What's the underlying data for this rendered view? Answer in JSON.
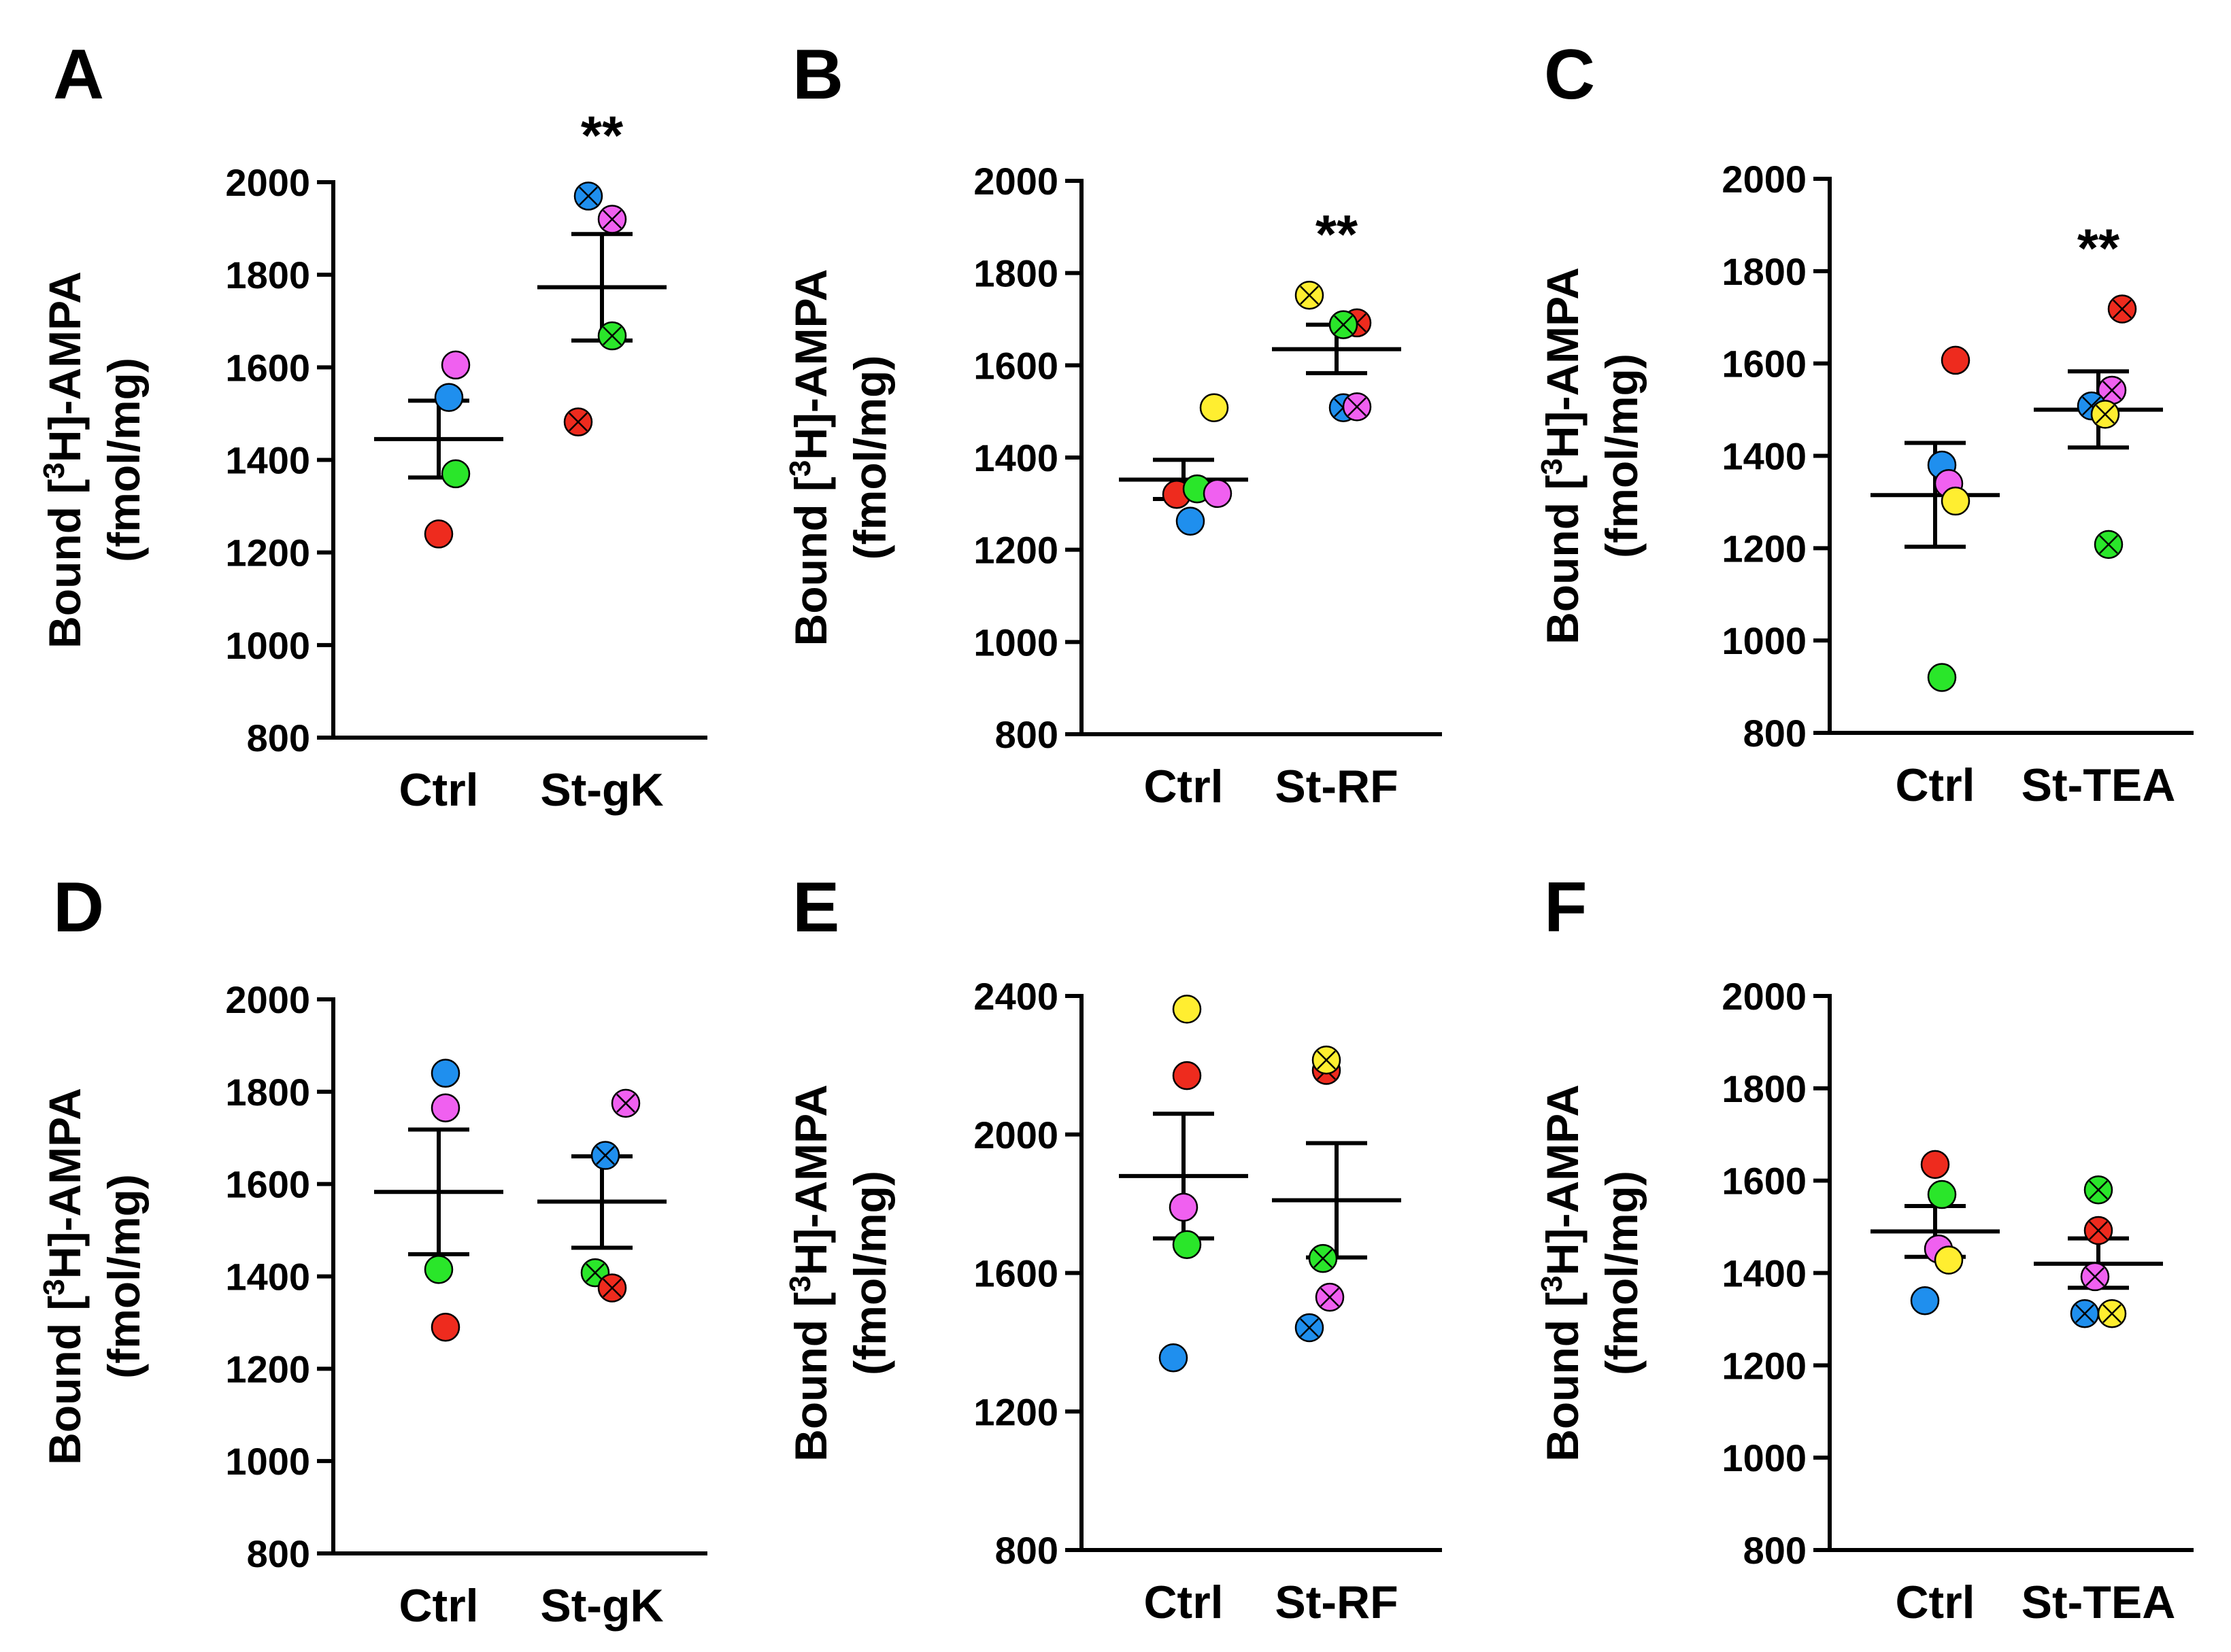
{
  "chart_data": [
    {
      "panel": "A",
      "type": "scatter",
      "ylabel_main": "Bound [",
      "ylabel_sup": "3",
      "ylabel_rest": "H]-AMPA",
      "ylabel_units": "(fmol/mg)",
      "ylim": [
        800,
        2000
      ],
      "yticks": [
        "800",
        "1000",
        "1200",
        "1400",
        "1600",
        "1800",
        "2000"
      ],
      "categories": [
        "Ctrl",
        "St-gK"
      ],
      "significance": [
        "",
        "**"
      ],
      "groups": [
        {
          "category": "Ctrl",
          "mean": 1445,
          "sem_low": 1362,
          "sem_high": 1528,
          "points": [
            {
              "color": "magenta",
              "value": 1605,
              "crossed": false
            },
            {
              "color": "blue",
              "value": 1535,
              "crossed": false
            },
            {
              "color": "green",
              "value": 1370,
              "crossed": false
            },
            {
              "color": "red",
              "value": 1240,
              "crossed": false
            }
          ]
        },
        {
          "category": "St-gK",
          "mean": 1773,
          "sem_low": 1658,
          "sem_high": 1888,
          "points": [
            {
              "color": "blue",
              "value": 1970,
              "crossed": true
            },
            {
              "color": "magenta",
              "value": 1920,
              "crossed": true
            },
            {
              "color": "green",
              "value": 1668,
              "crossed": true
            },
            {
              "color": "red",
              "value": 1482,
              "crossed": true
            }
          ]
        }
      ]
    },
    {
      "panel": "B",
      "type": "scatter",
      "ylabel_main": "Bound [",
      "ylabel_sup": "3",
      "ylabel_rest": "H]-AMPA",
      "ylabel_units": "(fmol/mg)",
      "ylim": [
        800,
        2000
      ],
      "yticks": [
        "800",
        "1000",
        "1200",
        "1400",
        "1600",
        "1800",
        "2000"
      ],
      "categories": [
        "Ctrl",
        "St-RF"
      ],
      "significance": [
        "",
        "**"
      ],
      "groups": [
        {
          "category": "Ctrl",
          "mean": 1352,
          "sem_low": 1310,
          "sem_high": 1395,
          "points": [
            {
              "color": "yellow",
              "value": 1508,
              "crossed": false
            },
            {
              "color": "red",
              "value": 1320,
              "crossed": false
            },
            {
              "color": "green",
              "value": 1332,
              "crossed": false
            },
            {
              "color": "magenta",
              "value": 1322,
              "crossed": false
            },
            {
              "color": "blue",
              "value": 1262,
              "crossed": false
            }
          ]
        },
        {
          "category": "St-RF",
          "mean": 1635,
          "sem_low": 1583,
          "sem_high": 1688,
          "points": [
            {
              "color": "yellow",
              "value": 1752,
              "crossed": true
            },
            {
              "color": "red",
              "value": 1692,
              "crossed": true
            },
            {
              "color": "green",
              "value": 1688,
              "crossed": true
            },
            {
              "color": "blue",
              "value": 1508,
              "crossed": true
            },
            {
              "color": "magenta",
              "value": 1510,
              "crossed": true
            }
          ]
        }
      ]
    },
    {
      "panel": "C",
      "type": "scatter",
      "ylabel_main": "Bound [",
      "ylabel_sup": "3",
      "ylabel_rest": "H]-AMPA",
      "ylabel_units": "(fmol/mg)",
      "ylim": [
        800,
        2000
      ],
      "yticks": [
        "800",
        "1000",
        "1200",
        "1400",
        "1600",
        "1800",
        "2000"
      ],
      "categories": [
        "Ctrl",
        "St-TEA"
      ],
      "significance": [
        "",
        "**"
      ],
      "groups": [
        {
          "category": "Ctrl",
          "mean": 1315,
          "sem_low": 1203,
          "sem_high": 1428,
          "points": [
            {
              "color": "red",
              "value": 1607,
              "crossed": false
            },
            {
              "color": "blue",
              "value": 1380,
              "crossed": false
            },
            {
              "color": "magenta",
              "value": 1340,
              "crossed": false
            },
            {
              "color": "yellow",
              "value": 1302,
              "crossed": false
            },
            {
              "color": "green",
              "value": 920,
              "crossed": false
            }
          ]
        },
        {
          "category": "St-TEA",
          "mean": 1500,
          "sem_low": 1418,
          "sem_high": 1583,
          "points": [
            {
              "color": "red",
              "value": 1718,
              "crossed": true
            },
            {
              "color": "magenta",
              "value": 1542,
              "crossed": true
            },
            {
              "color": "blue",
              "value": 1508,
              "crossed": true
            },
            {
              "color": "yellow",
              "value": 1490,
              "crossed": true
            },
            {
              "color": "green",
              "value": 1208,
              "crossed": true
            }
          ]
        }
      ]
    },
    {
      "panel": "D",
      "type": "scatter",
      "ylabel_main": "Bound [",
      "ylabel_sup": "3",
      "ylabel_rest": "H]-AMPA",
      "ylabel_units": "(fmol/mg)",
      "ylim": [
        800,
        2000
      ],
      "yticks": [
        "800",
        "1000",
        "1200",
        "1400",
        "1600",
        "1800",
        "2000"
      ],
      "categories": [
        "Ctrl",
        "St-gK"
      ],
      "significance": [
        "",
        ""
      ],
      "groups": [
        {
          "category": "Ctrl",
          "mean": 1583,
          "sem_low": 1448,
          "sem_high": 1718,
          "points": [
            {
              "color": "blue",
              "value": 1840,
              "crossed": false
            },
            {
              "color": "magenta",
              "value": 1765,
              "crossed": false
            },
            {
              "color": "green",
              "value": 1415,
              "crossed": false
            },
            {
              "color": "red",
              "value": 1290,
              "crossed": false
            }
          ]
        },
        {
          "category": "St-gK",
          "mean": 1562,
          "sem_low": 1462,
          "sem_high": 1660,
          "points": [
            {
              "color": "magenta",
              "value": 1775,
              "crossed": true
            },
            {
              "color": "blue",
              "value": 1662,
              "crossed": true
            },
            {
              "color": "green",
              "value": 1408,
              "crossed": true
            },
            {
              "color": "red",
              "value": 1375,
              "crossed": true
            }
          ]
        }
      ]
    },
    {
      "panel": "E",
      "type": "scatter",
      "ylabel_main": "Bound [",
      "ylabel_sup": "3",
      "ylabel_rest": "H]-AMPA",
      "ylabel_units": "(fmol/mg)",
      "ylim": [
        800,
        2400
      ],
      "yticks": [
        "800",
        "1200",
        "1600",
        "2000",
        "2400"
      ],
      "categories": [
        "Ctrl",
        "St-RF"
      ],
      "significance": [
        "",
        ""
      ],
      "groups": [
        {
          "category": "Ctrl",
          "mean": 1880,
          "sem_low": 1700,
          "sem_high": 2060,
          "points": [
            {
              "color": "yellow",
              "value": 2362,
              "crossed": false
            },
            {
              "color": "red",
              "value": 2170,
              "crossed": false
            },
            {
              "color": "magenta",
              "value": 1790,
              "crossed": false
            },
            {
              "color": "green",
              "value": 1682,
              "crossed": false
            },
            {
              "color": "blue",
              "value": 1355,
              "crossed": false
            }
          ]
        },
        {
          "category": "St-RF",
          "mean": 1810,
          "sem_low": 1645,
          "sem_high": 1975,
          "points": [
            {
              "color": "red",
              "value": 2185,
              "crossed": true
            },
            {
              "color": "yellow",
              "value": 2215,
              "crossed": true
            },
            {
              "color": "green",
              "value": 1642,
              "crossed": true
            },
            {
              "color": "magenta",
              "value": 1530,
              "crossed": true
            },
            {
              "color": "blue",
              "value": 1442,
              "crossed": true
            }
          ]
        }
      ]
    },
    {
      "panel": "F",
      "type": "scatter",
      "ylabel_main": "Bound [",
      "ylabel_sup": "3",
      "ylabel_rest": "H]-AMPA",
      "ylabel_units": "(fmol/mg)",
      "ylim": [
        800,
        2000
      ],
      "yticks": [
        "800",
        "1000",
        "1200",
        "1400",
        "1600",
        "1800",
        "2000"
      ],
      "categories": [
        "Ctrl",
        "St-TEA"
      ],
      "significance": [
        "",
        ""
      ],
      "groups": [
        {
          "category": "Ctrl",
          "mean": 1490,
          "sem_low": 1435,
          "sem_high": 1545,
          "points": [
            {
              "color": "red",
              "value": 1635,
              "crossed": false
            },
            {
              "color": "green",
              "value": 1570,
              "crossed": false
            },
            {
              "color": "magenta",
              "value": 1452,
              "crossed": false
            },
            {
              "color": "yellow",
              "value": 1428,
              "crossed": false
            },
            {
              "color": "blue",
              "value": 1340,
              "crossed": false
            }
          ]
        },
        {
          "category": "St-TEA",
          "mean": 1420,
          "sem_low": 1368,
          "sem_high": 1475,
          "points": [
            {
              "color": "green",
              "value": 1580,
              "crossed": true
            },
            {
              "color": "red",
              "value": 1492,
              "crossed": true
            },
            {
              "color": "magenta",
              "value": 1392,
              "crossed": true
            },
            {
              "color": "blue",
              "value": 1312,
              "crossed": true
            },
            {
              "color": "yellow",
              "value": 1312,
              "crossed": true
            }
          ]
        }
      ]
    }
  ],
  "colors": {
    "red": "#ee2b1e",
    "blue": "#1f8fee",
    "green": "#2ae62a",
    "magenta": "#f060f0",
    "yellow": "#ffee30",
    "axis": "#000000"
  }
}
